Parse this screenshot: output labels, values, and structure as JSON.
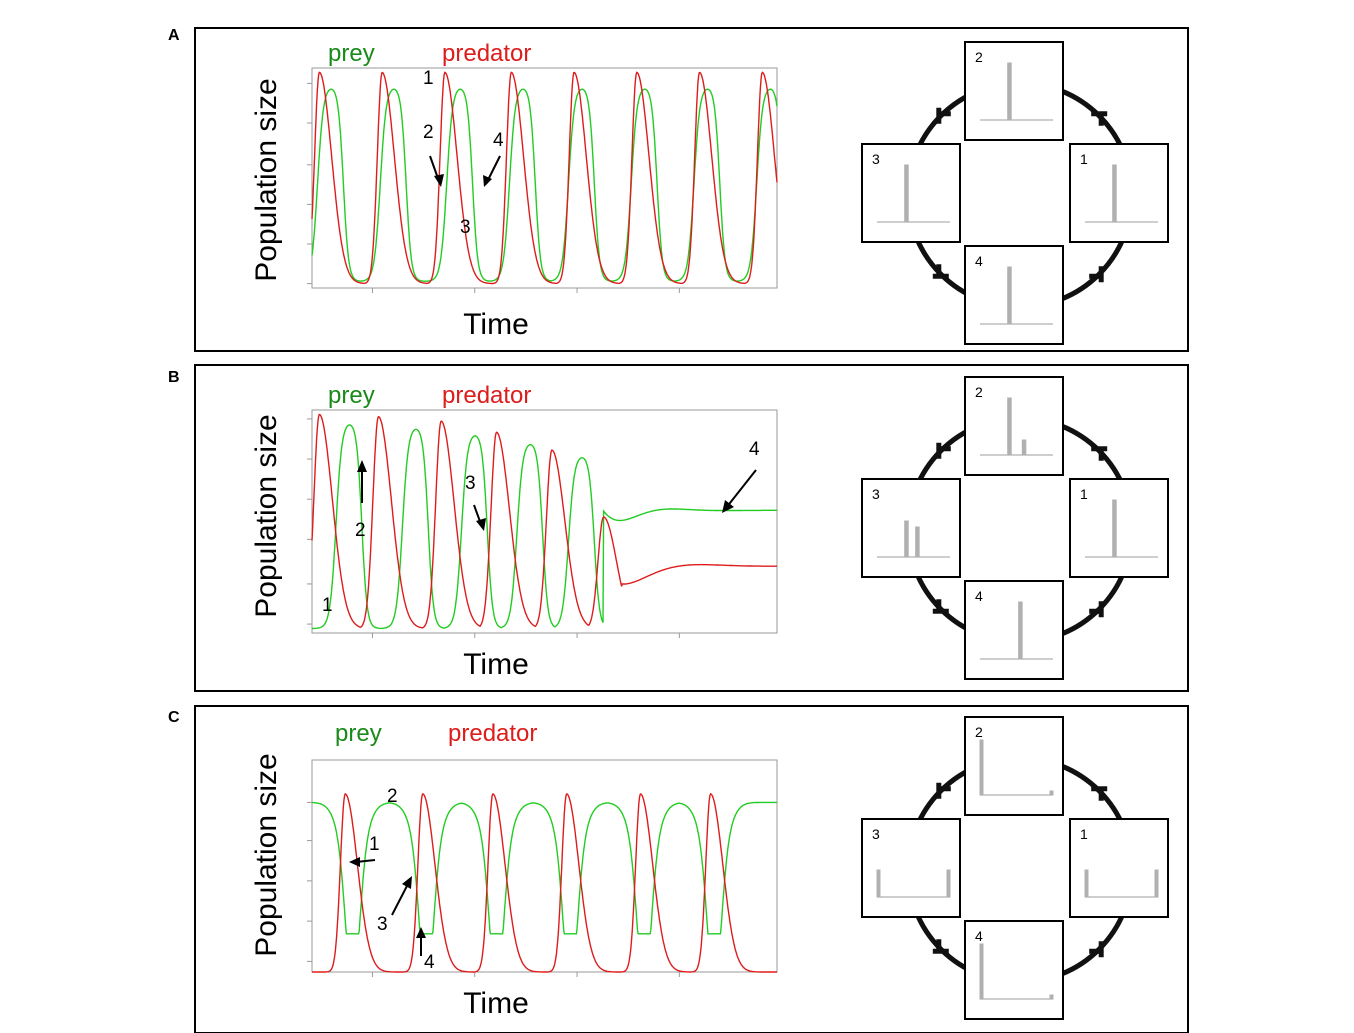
{
  "chart_data": [
    {
      "type": "line",
      "panel": "A",
      "ylabel": "Population size",
      "xlabel": "Time",
      "legend": [
        "prey",
        "predator"
      ],
      "series": [
        {
          "name": "prey",
          "color": "#22cc22",
          "peaks": [
            0.5,
            2.2,
            4.0,
            5.7,
            7.3,
            9.0,
            10.7,
            12.4
          ],
          "high": 0.92,
          "low": 0.03,
          "shape": "plateau"
        },
        {
          "name": "predator",
          "color": "#dd1c1c",
          "peaks": [
            0.2,
            1.9,
            3.6,
            5.4,
            7.1,
            8.8,
            10.5,
            12.2
          ],
          "high": 0.98,
          "low": 0.02,
          "shape": "spike"
        }
      ],
      "annotations": [
        "1",
        "2",
        "4",
        "3"
      ],
      "cycle_labels": [
        "2",
        "3",
        "1",
        "4"
      ],
      "histograms": {
        "1": [
          [
            0.4,
            0.95
          ]
        ],
        "2": [
          [
            0.4,
            0.95
          ]
        ],
        "3": [
          [
            0.4,
            0.95
          ]
        ],
        "4": [
          [
            0.4,
            0.95
          ]
        ]
      }
    },
    {
      "type": "line",
      "panel": "B",
      "ylabel": "Population size",
      "xlabel": "Time",
      "legend": [
        "prey",
        "predator"
      ],
      "series": [
        {
          "name": "prey",
          "color": "#22cc22",
          "peaks": [
            1.0,
            2.8,
            4.4,
            5.9,
            7.3
          ],
          "heights": [
            0.95,
            0.93,
            0.9,
            0.86,
            0.8
          ],
          "low": 0.02,
          "shape": "plateau",
          "steady": 0.55
        },
        {
          "name": "predator",
          "color": "#dd1c1c",
          "peaks": [
            0.2,
            1.8,
            3.5,
            5.0,
            6.5,
            7.9
          ],
          "heights": [
            0.98,
            0.97,
            0.95,
            0.9,
            0.82,
            0.52
          ],
          "low": 0.02,
          "shape": "spike",
          "steady": 0.3
        }
      ],
      "annotations": [
        "2",
        "3",
        "4",
        "1"
      ],
      "cycle_labels": [
        "2",
        "3",
        "1",
        "4"
      ],
      "histograms": {
        "1": [
          [
            0.4,
            0.95
          ]
        ],
        "2": [
          [
            0.4,
            0.95
          ],
          [
            0.6,
            0.25
          ]
        ],
        "3": [
          [
            0.4,
            0.6
          ],
          [
            0.55,
            0.5
          ]
        ],
        "4": [
          [
            0.55,
            0.95
          ]
        ]
      }
    },
    {
      "type": "line",
      "panel": "C",
      "ylabel": "Population size",
      "xlabel": "Time",
      "legend": [
        "prey",
        "predator"
      ],
      "series": [
        {
          "name": "prey",
          "color": "#22cc22",
          "troughs": [
            1.1,
            3.1,
            5.0,
            7.0,
            9.0,
            10.9
          ],
          "high": 0.8,
          "low": 0.2,
          "shape": "dips"
        },
        {
          "name": "predator",
          "color": "#dd1c1c",
          "peaks": [
            0.9,
            3.0,
            4.9,
            6.9,
            8.9,
            10.8
          ],
          "high": 0.84,
          "low": 0.0,
          "shape": "spike"
        }
      ],
      "annotations": [
        "2",
        "1",
        "3",
        "4"
      ],
      "cycle_labels": [
        "2",
        "3",
        "1",
        "4"
      ],
      "histograms": {
        "1": "U",
        "2": "L",
        "3": "U",
        "4": "L"
      }
    }
  ],
  "panels": [
    {
      "letter": "A",
      "prey_label": "prey",
      "predator_label": "predator",
      "ylabel": "Population size",
      "xlabel": "Time"
    },
    {
      "letter": "B",
      "prey_label": "prey",
      "predator_label": "predator",
      "ylabel": "Population size",
      "xlabel": "Time"
    },
    {
      "letter": "C",
      "prey_label": "prey",
      "predator_label": "predator",
      "ylabel": "Population size",
      "xlabel": "Time"
    }
  ],
  "colors": {
    "prey": "#22cc22",
    "predator": "#dd1c1c",
    "legend_prey": "#1a8a1a",
    "legend_predator": "#dd1c1c",
    "histogram": "#b0b0b0"
  }
}
